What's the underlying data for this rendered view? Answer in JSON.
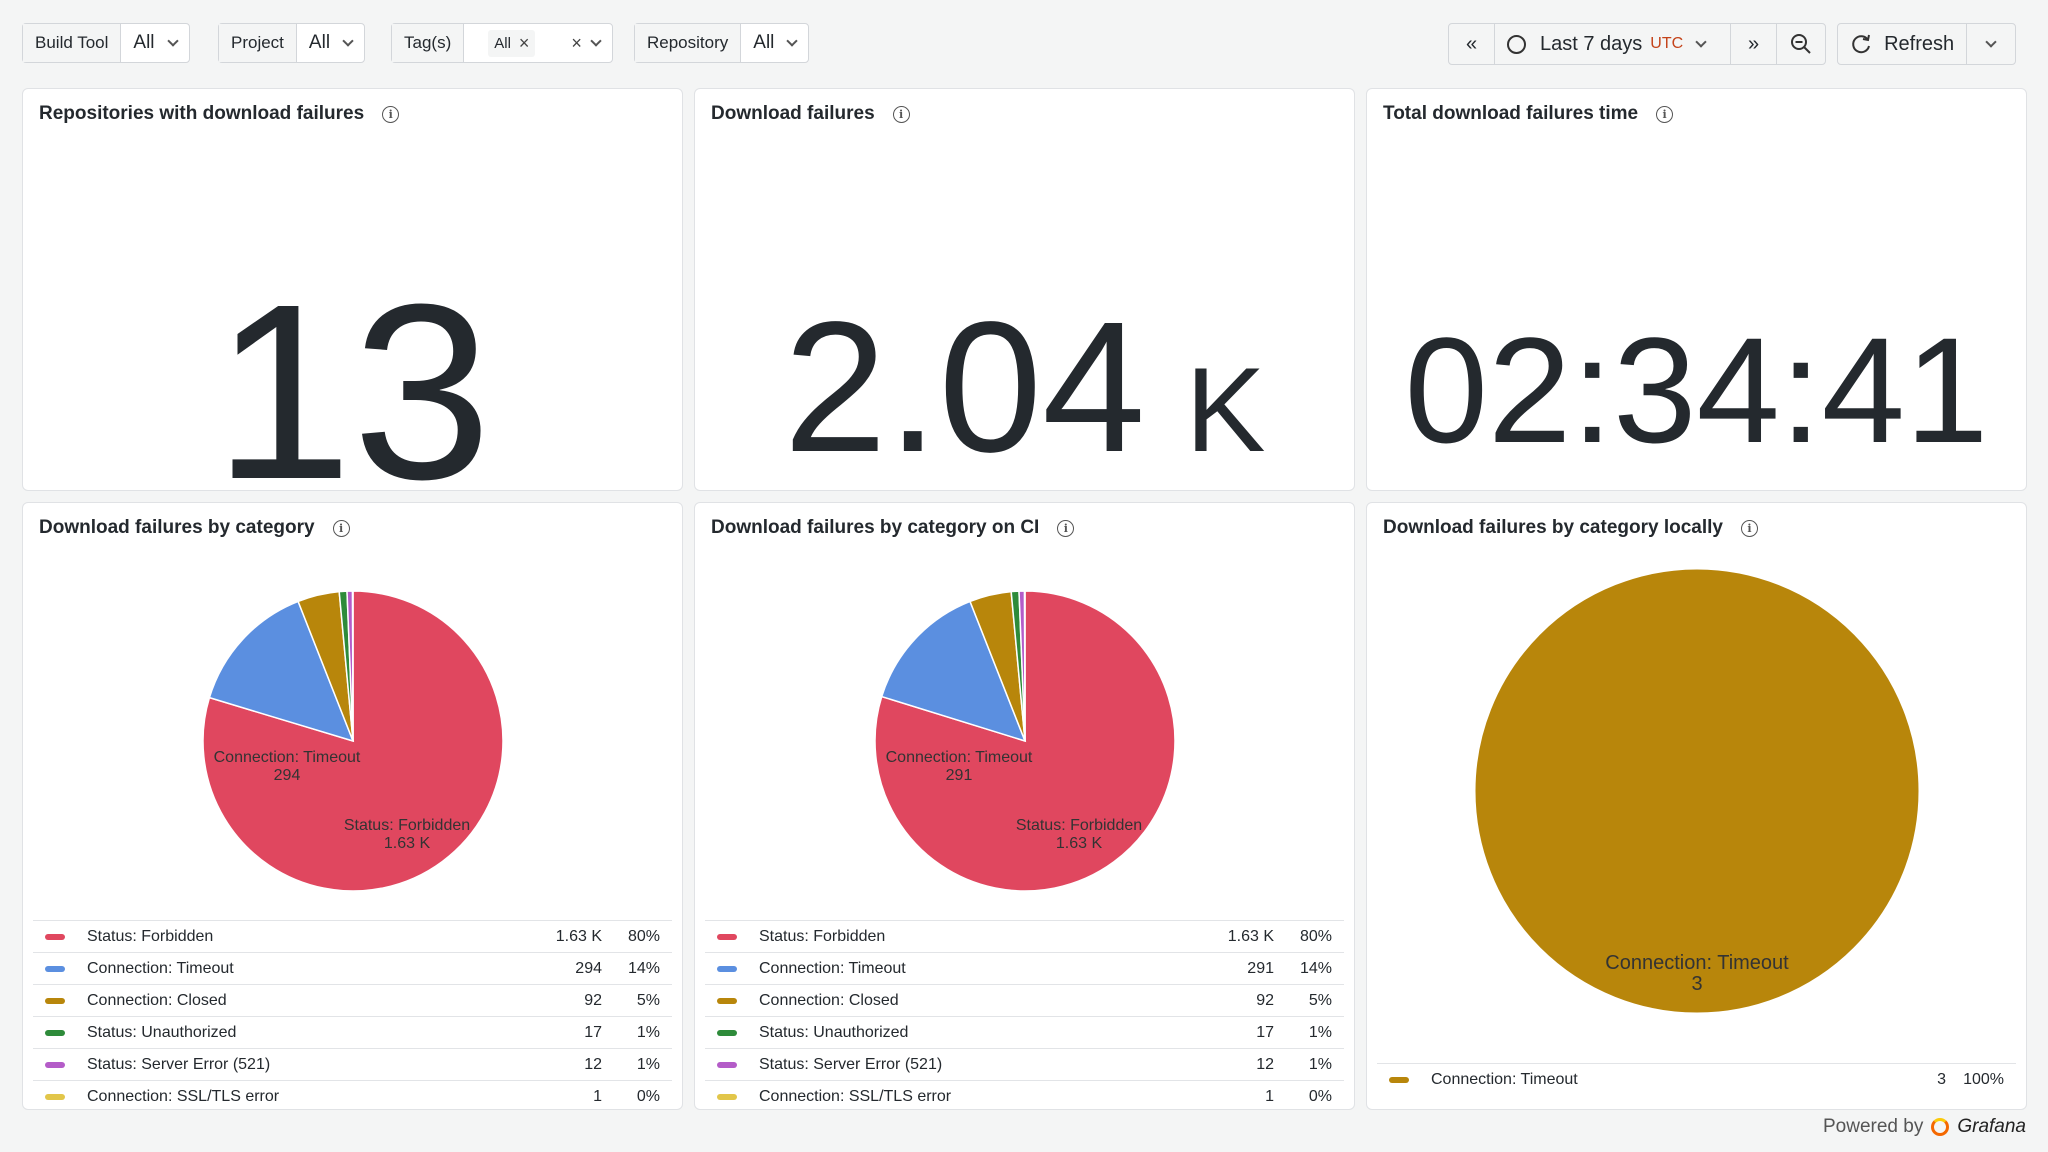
{
  "filters": [
    {
      "label": "Build Tool",
      "value": "All"
    },
    {
      "label": "Project",
      "value": "All"
    },
    {
      "label": "Tag(s)",
      "chip": "All"
    },
    {
      "label": "Repository",
      "value": "All"
    }
  ],
  "timepicker": {
    "range": "Last 7 days",
    "tz": "UTC"
  },
  "refresh_label": "Refresh",
  "stats": [
    {
      "title": "Repositories with download failures",
      "value": "13",
      "unit": ""
    },
    {
      "title": "Download failures",
      "value": "2.04",
      "unit": "K"
    },
    {
      "title": "Total download failures time",
      "value": "02:34:41",
      "unit": ""
    }
  ],
  "pies": [
    {
      "title": "Download failures by category",
      "label_a": {
        "name": "Connection: Timeout",
        "value": "294"
      },
      "label_b": {
        "name": "Status: Forbidden",
        "value": "1.63 K"
      },
      "legend": [
        {
          "name": "Status: Forbidden",
          "value": "1.63 K",
          "pct": "80%",
          "color": "#e0475f"
        },
        {
          "name": "Connection: Timeout",
          "value": "294",
          "pct": "14%",
          "color": "#5b8fe0"
        },
        {
          "name": "Connection: Closed",
          "value": "92",
          "pct": "5%",
          "color": "#b8860b"
        },
        {
          "name": "Status: Unauthorized",
          "value": "17",
          "pct": "1%",
          "color": "#2e8b3a"
        },
        {
          "name": "Status: Server Error (521)",
          "value": "12",
          "pct": "1%",
          "color": "#b45cc8"
        },
        {
          "name": "Connection: SSL/TLS error",
          "value": "1",
          "pct": "0%",
          "color": "#e2c64a"
        }
      ]
    },
    {
      "title": "Download failures by category on CI",
      "label_a": {
        "name": "Connection: Timeout",
        "value": "291"
      },
      "label_b": {
        "name": "Status: Forbidden",
        "value": "1.63 K"
      },
      "legend": [
        {
          "name": "Status: Forbidden",
          "value": "1.63 K",
          "pct": "80%",
          "color": "#e0475f"
        },
        {
          "name": "Connection: Timeout",
          "value": "291",
          "pct": "14%",
          "color": "#5b8fe0"
        },
        {
          "name": "Connection: Closed",
          "value": "92",
          "pct": "5%",
          "color": "#b8860b"
        },
        {
          "name": "Status: Unauthorized",
          "value": "17",
          "pct": "1%",
          "color": "#2e8b3a"
        },
        {
          "name": "Status: Server Error (521)",
          "value": "12",
          "pct": "1%",
          "color": "#b45cc8"
        },
        {
          "name": "Connection: SSL/TLS error",
          "value": "1",
          "pct": "0%",
          "color": "#e2c64a"
        }
      ]
    },
    {
      "title": "Download failures by category locally",
      "label_a": {
        "name": "Connection: Timeout",
        "value": "3"
      },
      "legend": [
        {
          "name": "Connection: Timeout",
          "value": "3",
          "pct": "100%",
          "color": "#b8860b"
        }
      ]
    }
  ],
  "footer": {
    "powered": "Powered by",
    "brand": "Grafana"
  },
  "chart_data": [
    {
      "type": "pie",
      "title": "Download failures by category",
      "categories": [
        "Status: Forbidden",
        "Connection: Timeout",
        "Connection: Closed",
        "Status: Unauthorized",
        "Status: Server Error (521)",
        "Connection: SSL/TLS error"
      ],
      "values": [
        1630,
        294,
        92,
        17,
        12,
        1
      ]
    },
    {
      "type": "pie",
      "title": "Download failures by category on CI",
      "categories": [
        "Status: Forbidden",
        "Connection: Timeout",
        "Connection: Closed",
        "Status: Unauthorized",
        "Status: Server Error (521)",
        "Connection: SSL/TLS error"
      ],
      "values": [
        1630,
        291,
        92,
        17,
        12,
        1
      ]
    },
    {
      "type": "pie",
      "title": "Download failures by category locally",
      "categories": [
        "Connection: Timeout"
      ],
      "values": [
        3
      ]
    }
  ]
}
